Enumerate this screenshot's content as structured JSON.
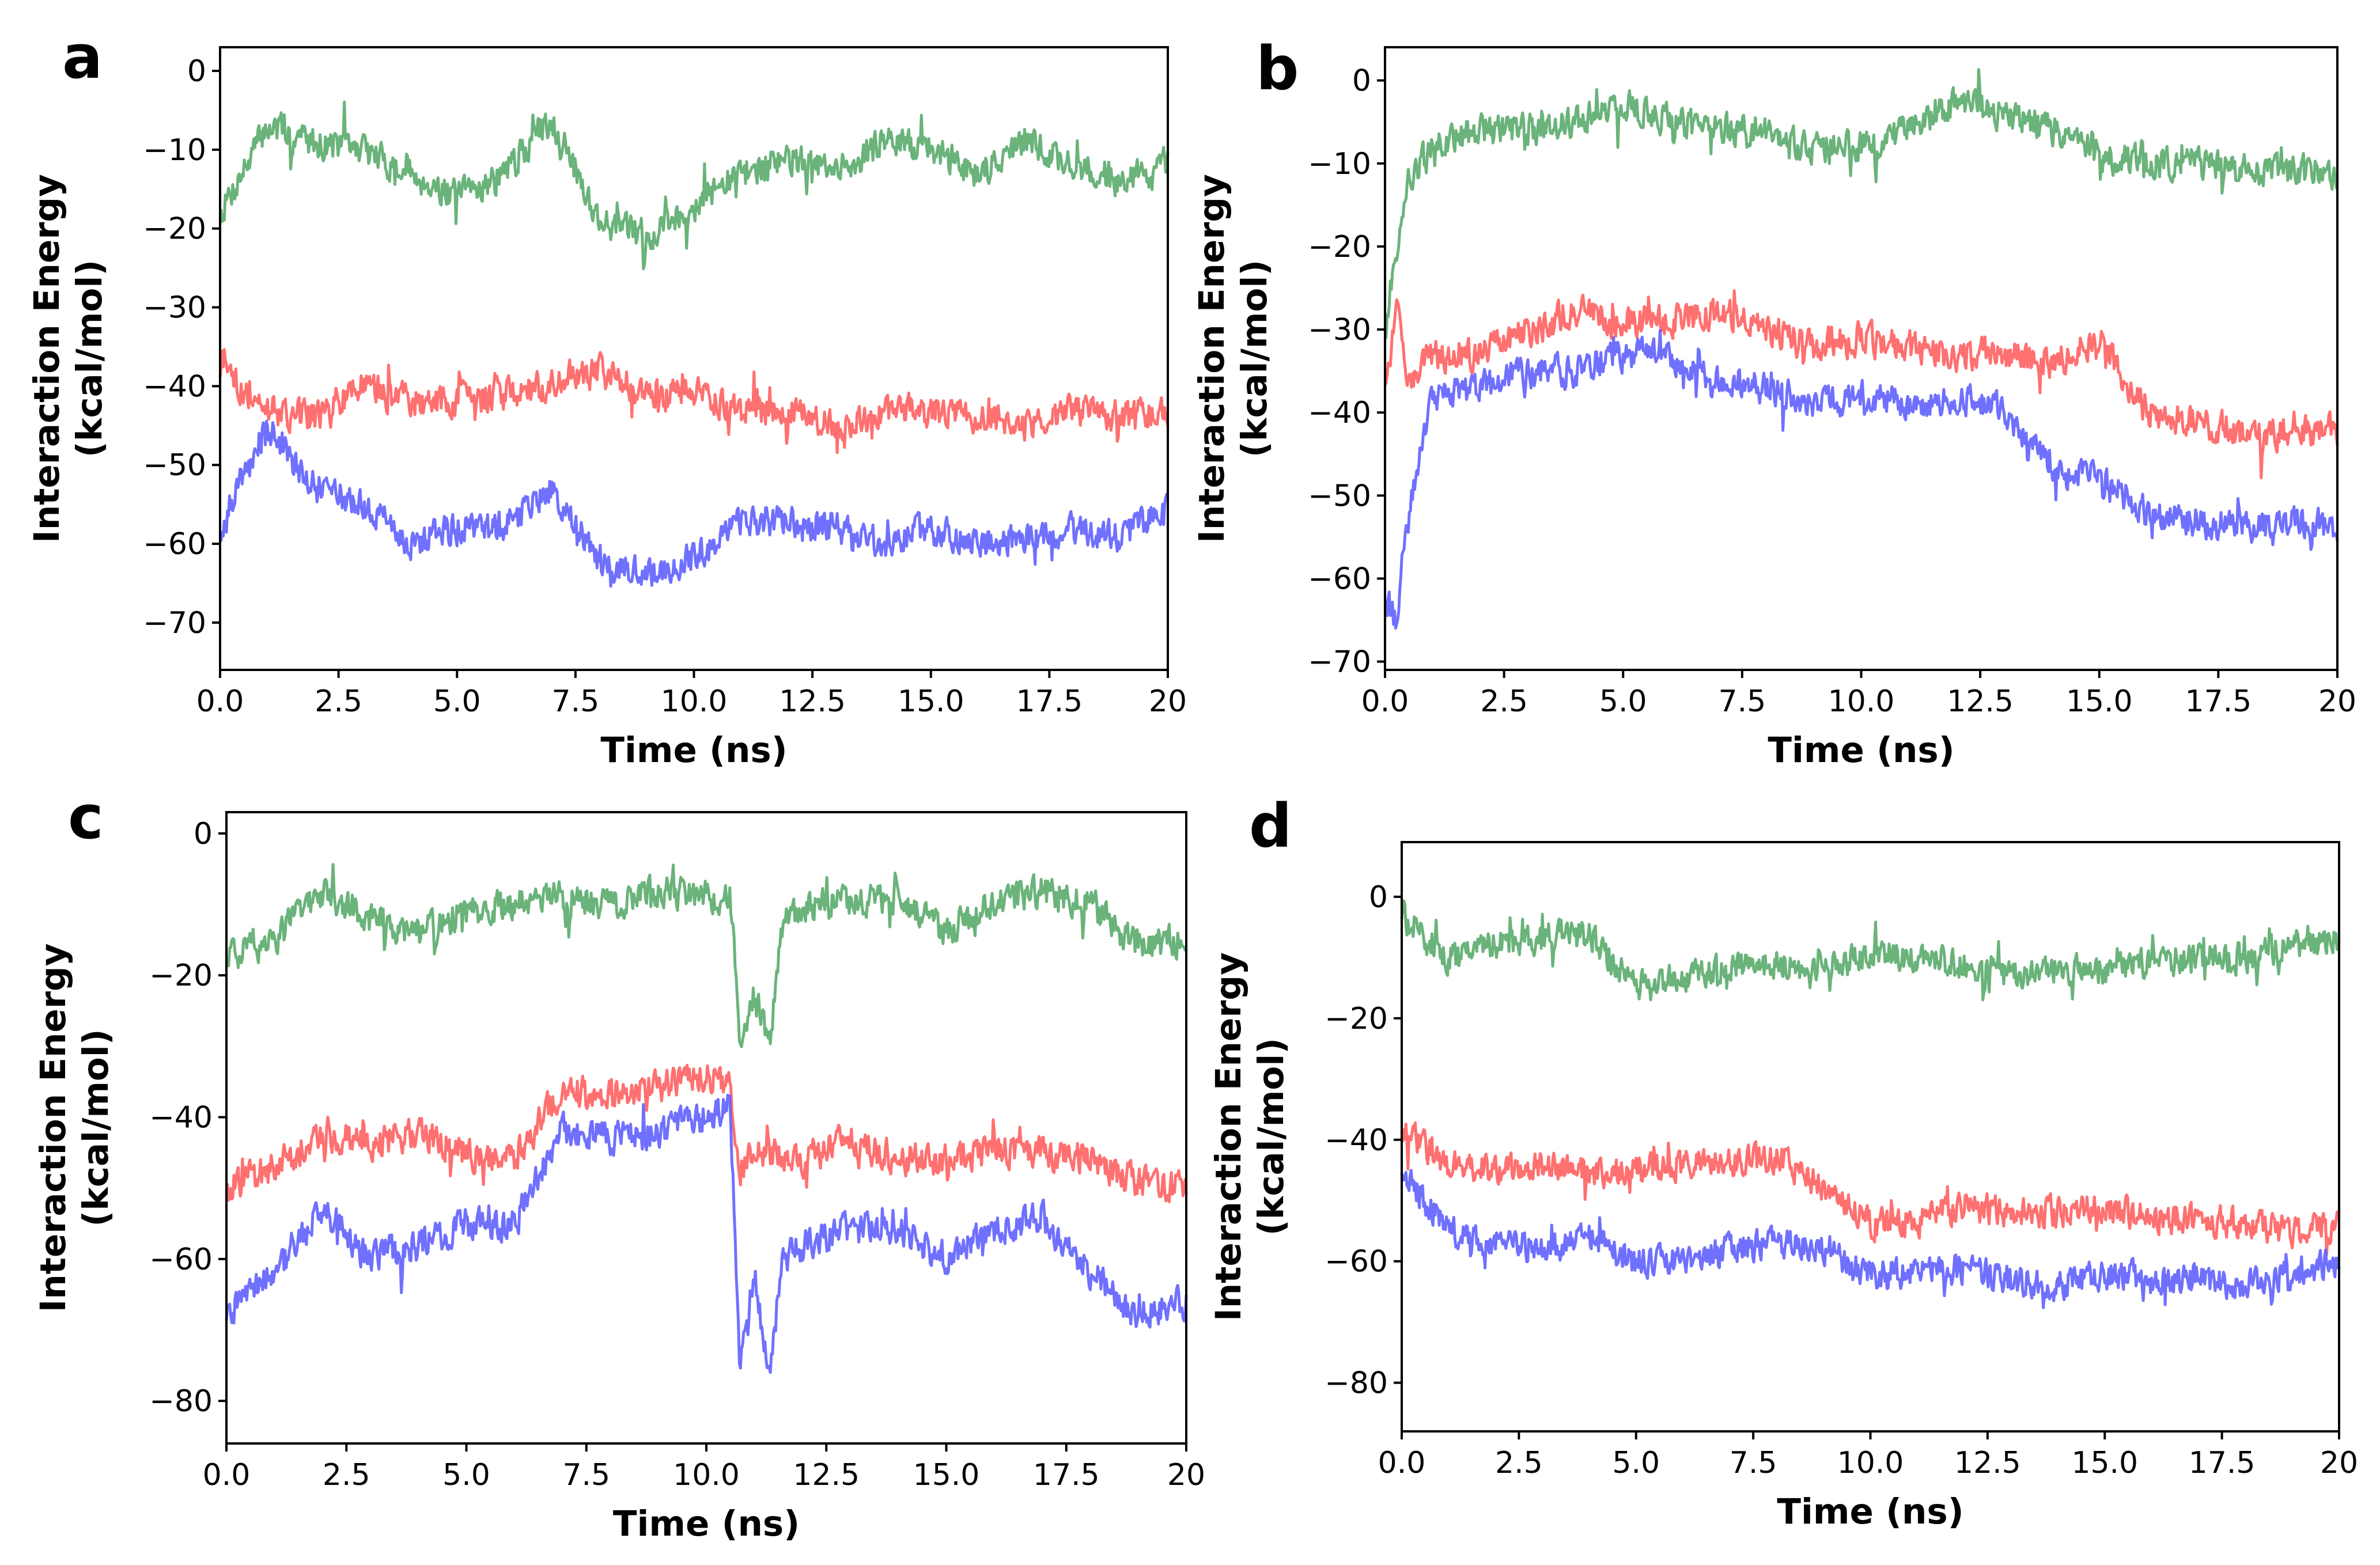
{
  "chart_data": [
    {
      "panel": "a",
      "type": "line",
      "xlabel": "Time (ns)",
      "ylabel_line1": "Interaction Energy",
      "ylabel_line2": "(kcal/mol)",
      "xlim": [
        0,
        20
      ],
      "ylim": [
        -76,
        3
      ],
      "xticks": [
        0,
        2.5,
        5,
        7.5,
        10,
        12.5,
        15,
        17.5,
        20
      ],
      "xtick_labels": [
        "0.0",
        "2.5",
        "5.0",
        "7.5",
        "10.0",
        "12.5",
        "15.0",
        "17.5",
        "20"
      ],
      "yticks": [
        0,
        -10,
        -20,
        -30,
        -40,
        -50,
        -60,
        -70
      ],
      "ytick_labels": [
        "0",
        "−10",
        "−20",
        "−30",
        "−40",
        "−50",
        "−60",
        "−70"
      ],
      "series": [
        {
          "name": "green",
          "color": "#55a868",
          "x": [
            0,
            1,
            2,
            3,
            4,
            5,
            6,
            7,
            8,
            9,
            10,
            11,
            12,
            13,
            14,
            15,
            16,
            17,
            18,
            19,
            20
          ],
          "values": [
            -18,
            -7,
            -9,
            -10,
            -13,
            -16,
            -13,
            -6,
            -19,
            -21,
            -17,
            -13,
            -11,
            -13,
            -9,
            -10,
            -13,
            -9,
            -12,
            -14,
            -12
          ]
        },
        {
          "name": "red",
          "color": "#ff5c5c",
          "x": [
            0,
            1,
            2,
            3,
            4,
            5,
            6,
            7,
            8,
            9,
            10,
            11,
            12,
            13,
            14,
            15,
            16,
            17,
            18,
            19,
            20
          ],
          "values": [
            -38,
            -43,
            -44,
            -40,
            -42,
            -42,
            -41,
            -40,
            -38,
            -41,
            -41,
            -43,
            -43,
            -45,
            -43,
            -43,
            -44,
            -45,
            -43,
            -44,
            -43
          ]
        },
        {
          "name": "blue",
          "color": "#5c5cff",
          "x": [
            0,
            1,
            2,
            3,
            4,
            5,
            6,
            7,
            8,
            9,
            10,
            11,
            12,
            13,
            14,
            15,
            16,
            17,
            18,
            19,
            20
          ],
          "values": [
            -58,
            -45,
            -53,
            -55,
            -60,
            -58,
            -58,
            -53,
            -62,
            -64,
            -62,
            -57,
            -57,
            -58,
            -60,
            -58,
            -60,
            -59,
            -58,
            -59,
            -56
          ]
        }
      ]
    },
    {
      "panel": "b",
      "type": "line",
      "xlabel": "Time (ns)",
      "ylabel_line1": "Interaction Energy",
      "ylabel_line2": "(kcal/mol)",
      "xlim": [
        0,
        20
      ],
      "ylim": [
        -71,
        4
      ],
      "xticks": [
        0,
        2.5,
        5,
        7.5,
        10,
        12.5,
        15,
        17.5,
        20
      ],
      "xtick_labels": [
        "0.0",
        "2.5",
        "5.0",
        "7.5",
        "10.0",
        "12.5",
        "15.0",
        "17.5",
        "20"
      ],
      "yticks": [
        0,
        -10,
        -20,
        -30,
        -40,
        -50,
        -60,
        -70
      ],
      "ytick_labels": [
        "0",
        "−10",
        "−20",
        "−30",
        "−40",
        "−50",
        "−60",
        "−70"
      ],
      "series": [
        {
          "name": "green",
          "color": "#55a868",
          "x": [
            0,
            0.25,
            0.5,
            1,
            2,
            3,
            4,
            5,
            6,
            7,
            8,
            9,
            10,
            11,
            12,
            13,
            14,
            15,
            16,
            17,
            18,
            19,
            20
          ],
          "values": [
            -30,
            -20,
            -12,
            -8,
            -6,
            -6,
            -5,
            -3,
            -5,
            -6,
            -6,
            -8,
            -8,
            -6,
            -3,
            -4,
            -6,
            -9,
            -10,
            -10,
            -11,
            -11,
            -11
          ]
        },
        {
          "name": "red",
          "color": "#ff5c5c",
          "x": [
            0,
            0.25,
            0.5,
            1,
            2,
            3,
            4,
            5,
            6,
            7,
            8,
            9,
            10,
            11,
            12,
            13,
            14,
            15,
            16,
            17,
            18,
            19,
            20
          ],
          "values": [
            -36,
            -28,
            -36,
            -33,
            -33,
            -30,
            -28,
            -29,
            -29,
            -28,
            -30,
            -32,
            -31,
            -32,
            -33,
            -33,
            -34,
            -31,
            -40,
            -41,
            -43,
            -42,
            -42
          ]
        },
        {
          "name": "blue",
          "color": "#5c5cff",
          "x": [
            0,
            0.25,
            0.5,
            1,
            2,
            3,
            4,
            5,
            6,
            7,
            8,
            9,
            10,
            11,
            12,
            13,
            14,
            15,
            16,
            17,
            18,
            19,
            20
          ],
          "values": [
            -62,
            -66,
            -52,
            -38,
            -37,
            -35,
            -35,
            -33,
            -33,
            -36,
            -37,
            -39,
            -38,
            -39,
            -38,
            -40,
            -47,
            -48,
            -52,
            -53,
            -54,
            -53,
            -54
          ]
        }
      ]
    },
    {
      "panel": "c",
      "type": "line",
      "xlabel": "Time (ns)",
      "ylabel_line1": "Interaction Energy",
      "ylabel_line2": "(kcal/mol)",
      "xlim": [
        0,
        20
      ],
      "ylim": [
        -86,
        3
      ],
      "xticks": [
        0,
        2.5,
        5,
        7.5,
        10,
        12.5,
        15,
        17.5,
        20
      ],
      "xtick_labels": [
        "0.0",
        "2.5",
        "5.0",
        "7.5",
        "10.0",
        "12.5",
        "15.0",
        "17.5",
        "20"
      ],
      "yticks": [
        0,
        -20,
        -40,
        -60,
        -80
      ],
      "ytick_labels": [
        "0",
        "−20",
        "−40",
        "−60",
        "−80"
      ],
      "series": [
        {
          "name": "green",
          "color": "#55a868",
          "x": [
            0,
            1,
            2,
            3,
            4,
            5,
            6,
            7,
            8,
            9,
            10,
            10.5,
            10.7,
            11,
            11.3,
            11.6,
            12,
            13,
            14,
            15,
            16,
            17,
            18,
            19,
            20
          ],
          "values": [
            -18,
            -15,
            -8,
            -12,
            -14,
            -11,
            -10,
            -9,
            -10,
            -8,
            -9,
            -9,
            -28,
            -23,
            -30,
            -13,
            -10,
            -10,
            -9,
            -14,
            -10,
            -8,
            -10,
            -16,
            -15
          ]
        },
        {
          "name": "red",
          "color": "#ff5c5c",
          "x": [
            0,
            1,
            2,
            3,
            4,
            5,
            6,
            7,
            8,
            9,
            10,
            10.5,
            10.7,
            11,
            12,
            13,
            14,
            15,
            16,
            17,
            18,
            19,
            20
          ],
          "values": [
            -50,
            -47,
            -42,
            -44,
            -42,
            -45,
            -46,
            -36,
            -37,
            -36,
            -34,
            -36,
            -47,
            -45,
            -46,
            -43,
            -46,
            -46,
            -45,
            -45,
            -46,
            -49,
            -50
          ]
        },
        {
          "name": "blue",
          "color": "#5c5cff",
          "x": [
            0,
            1,
            2,
            3,
            4,
            5,
            6,
            7,
            8,
            9,
            10,
            10.5,
            10.7,
            11,
            11.3,
            11.6,
            12,
            13,
            14,
            15,
            16,
            17,
            18,
            19,
            20
          ],
          "values": [
            -68,
            -62,
            -53,
            -60,
            -58,
            -55,
            -55,
            -42,
            -43,
            -42,
            -40,
            -38,
            -75,
            -62,
            -76,
            -60,
            -58,
            -56,
            -56,
            -60,
            -56,
            -54,
            -62,
            -68,
            -66
          ]
        }
      ]
    },
    {
      "panel": "d",
      "type": "line",
      "xlabel": "Time (ns)",
      "ylabel_line1": "Interaction Energy",
      "ylabel_line2": "(kcal/mol)",
      "xlim": [
        0,
        20
      ],
      "ylim": [
        -88,
        9
      ],
      "xticks": [
        0,
        2.5,
        5,
        7.5,
        10,
        12.5,
        15,
        17.5,
        20
      ],
      "xtick_labels": [
        "0.0",
        "2.5",
        "5.0",
        "7.5",
        "10.0",
        "12.5",
        "15.0",
        "17.5",
        "20"
      ],
      "yticks": [
        0,
        -20,
        -40,
        -60,
        -80
      ],
      "ytick_labels": [
        "0",
        "−20",
        "−40",
        "−60",
        "−80"
      ],
      "series": [
        {
          "name": "green",
          "color": "#55a868",
          "x": [
            0,
            1,
            2,
            3,
            4,
            5,
            6,
            7,
            8,
            9,
            10,
            11,
            12,
            13,
            14,
            15,
            16,
            17,
            18,
            19,
            20
          ],
          "values": [
            -3,
            -10,
            -8,
            -7,
            -6,
            -15,
            -13,
            -12,
            -11,
            -12,
            -9,
            -10,
            -11,
            -13,
            -12,
            -12,
            -11,
            -10,
            -10,
            -8,
            -7
          ]
        },
        {
          "name": "red",
          "color": "#ff5c5c",
          "x": [
            0,
            1,
            2,
            3,
            4,
            5,
            6,
            7,
            8,
            9,
            10,
            11,
            12,
            13,
            14,
            15,
            16,
            17,
            18,
            19,
            20
          ],
          "values": [
            -38,
            -44,
            -45,
            -44,
            -46,
            -45,
            -44,
            -44,
            -43,
            -48,
            -54,
            -53,
            -51,
            -52,
            -52,
            -51,
            -53,
            -53,
            -54,
            -55,
            -54
          ]
        },
        {
          "name": "blue",
          "color": "#5c5cff",
          "x": [
            0,
            1,
            2,
            3,
            4,
            5,
            6,
            7,
            8,
            9,
            10,
            11,
            12,
            13,
            14,
            15,
            16,
            17,
            18,
            19,
            20
          ],
          "values": [
            -45,
            -55,
            -57,
            -58,
            -56,
            -60,
            -60,
            -58,
            -57,
            -58,
            -62,
            -62,
            -61,
            -63,
            -64,
            -62,
            -63,
            -63,
            -64,
            -62,
            -60
          ]
        }
      ]
    }
  ]
}
